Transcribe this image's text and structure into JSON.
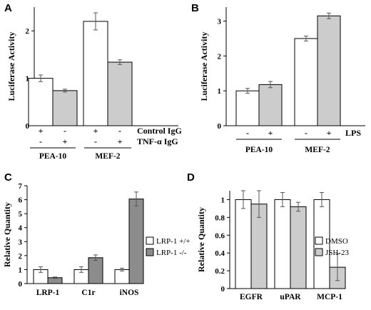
{
  "figure": {
    "panels": [
      "A",
      "B",
      "C",
      "D"
    ]
  },
  "colors": {
    "white_bar": "#ffffff",
    "light_gray_bar": "#cccccc",
    "dark_gray_bar": "#8c8c8c",
    "stroke": "#000000"
  },
  "chart_data": [
    {
      "panel": "A",
      "type": "bar",
      "ylabel": "Luciferase Activity",
      "ylim": [
        0,
        2.5
      ],
      "yticks": [
        0,
        1,
        2
      ],
      "groups": [
        "PEA-10",
        "MEF-2"
      ],
      "bars": [
        {
          "group": "PEA-10",
          "value": 1.0,
          "err": 0.07,
          "fill": "white"
        },
        {
          "group": "PEA-10",
          "value": 0.74,
          "err": 0.03,
          "fill": "light"
        },
        {
          "group": "MEF-2",
          "value": 2.2,
          "err": 0.18,
          "fill": "white"
        },
        {
          "group": "MEF-2",
          "value": 1.34,
          "err": 0.05,
          "fill": "light"
        }
      ],
      "sign_rows": [
        {
          "label": "Control IgG",
          "signs": [
            "+",
            "-",
            "+",
            "-"
          ]
        },
        {
          "label": "TNF-α IgG",
          "signs": [
            "-",
            "+",
            "-",
            "+"
          ]
        }
      ]
    },
    {
      "panel": "B",
      "type": "bar",
      "ylabel": "Luciferase Activity",
      "ylim": [
        0,
        3.4
      ],
      "yticks": [
        0,
        1,
        2,
        3
      ],
      "groups": [
        "PEA-10",
        "MEF-2"
      ],
      "bars": [
        {
          "group": "PEA-10",
          "value": 1.0,
          "err": 0.07,
          "fill": "white"
        },
        {
          "group": "PEA-10",
          "value": 1.18,
          "err": 0.09,
          "fill": "light"
        },
        {
          "group": "MEF-2",
          "value": 2.5,
          "err": 0.07,
          "fill": "white"
        },
        {
          "group": "MEF-2",
          "value": 3.15,
          "err": 0.08,
          "fill": "light"
        }
      ],
      "sign_rows": [
        {
          "label": "LPS",
          "signs": [
            "-",
            "+",
            "-",
            "+"
          ]
        }
      ]
    },
    {
      "panel": "C",
      "type": "bar",
      "ylabel": "Relative Quantity",
      "ylim": [
        0,
        7
      ],
      "yticks": [
        0,
        1,
        2,
        3,
        4,
        5,
        6,
        7
      ],
      "categories": [
        "LRP-1",
        "C1r",
        "iNOS"
      ],
      "series": [
        {
          "name": "LRP-1 +/+",
          "fill": "white",
          "values": [
            1.0,
            1.0,
            1.0
          ],
          "err": [
            0.2,
            0.2,
            0.1
          ]
        },
        {
          "name": "LRP-1 -/-",
          "fill": "dark",
          "values": [
            0.42,
            1.85,
            6.05
          ],
          "err": [
            0.05,
            0.2,
            0.5
          ]
        }
      ],
      "legend": "right"
    },
    {
      "panel": "D",
      "type": "bar",
      "ylabel": "Relative Quantity",
      "ylim": [
        0,
        1.1
      ],
      "yticks": [
        0,
        0.2,
        0.4,
        0.6,
        0.8,
        1
      ],
      "ytick_labels": [
        "0",
        "0.2",
        "0.4",
        "0.6",
        "0.8",
        "1"
      ],
      "categories": [
        "EGFR",
        "uPAR",
        "MCP-1"
      ],
      "series": [
        {
          "name": "DMSO",
          "fill": "white",
          "values": [
            1.0,
            1.0,
            1.0
          ],
          "err": [
            0.1,
            0.08,
            0.08
          ]
        },
        {
          "name": "JSH-23",
          "fill": "light",
          "values": [
            0.95,
            0.92,
            0.24
          ],
          "err": [
            0.15,
            0.05,
            0.15
          ]
        }
      ],
      "legend": "right"
    }
  ]
}
